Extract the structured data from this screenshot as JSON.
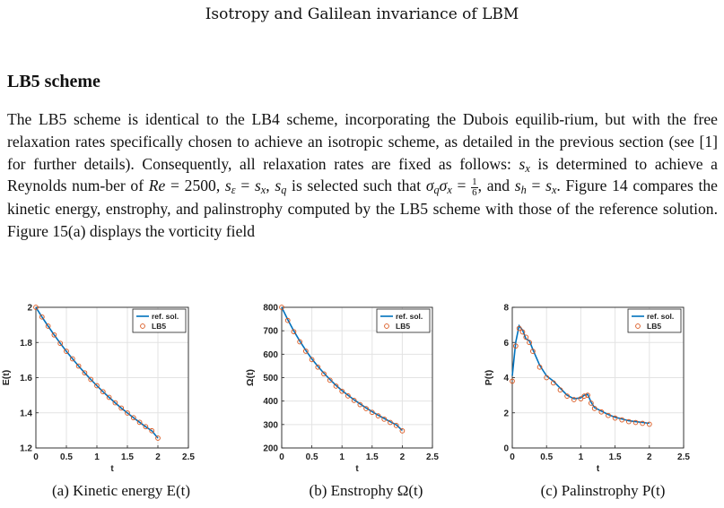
{
  "header": {
    "running_title": "Isotropy and Galilean invariance of LBM"
  },
  "section": {
    "title": "LB5 scheme"
  },
  "paragraph": {
    "s1": "The LB5 scheme is identical to the LB4 scheme, incorporating the Dubois equilib-rium, but with the free relaxation rates specifically chosen to achieve an isotropic scheme, as detailed in the previous section (see [1] for further details). Consequently, all relaxation rates are fixed as follows: ",
    "s2": " is determined to achieve a Reynolds num-ber of ",
    "s3": ", and ",
    "s4": ". Figure 14 compares the kinetic energy, enstrophy, and palinstrophy computed by the LB5 scheme with those of the reference solution. Figure 15(a) displays the vorticity field",
    "re_value": "2500",
    "frac_num": "1",
    "frac_den": "6"
  },
  "colors": {
    "ref_line": "#0072BD",
    "lb5_marker": "#D95319",
    "grid": "#e3e3e3"
  },
  "chart_data": [
    {
      "type": "line",
      "ylabel": "E(t)",
      "xlabel": "t",
      "xlim": [
        0,
        2.5
      ],
      "ylim": [
        1.2,
        2
      ],
      "xticks": [
        "0",
        "0.5",
        "1",
        "1.5",
        "2",
        "2.5"
      ],
      "yticks": [
        "1.2",
        "1.4",
        "1.6",
        "1.8",
        "2"
      ],
      "legend": "top-right",
      "legend_entries": [
        "ref. sol.",
        "LB5"
      ],
      "grid": true,
      "caption": "(a) Kinetic energy E(t)",
      "x": [
        0,
        0.1,
        0.2,
        0.3,
        0.4,
        0.5,
        0.6,
        0.7,
        0.8,
        0.9,
        1.0,
        1.1,
        1.2,
        1.3,
        1.4,
        1.5,
        1.6,
        1.7,
        1.8,
        1.9,
        2.0
      ],
      "series": [
        {
          "name": "ref. sol.",
          "style": "line",
          "values": [
            2.0,
            1.945,
            1.893,
            1.843,
            1.795,
            1.75,
            1.707,
            1.666,
            1.627,
            1.59,
            1.554,
            1.52,
            1.488,
            1.457,
            1.427,
            1.399,
            1.372,
            1.346,
            1.321,
            1.298,
            1.256
          ]
        },
        {
          "name": "LB5",
          "style": "markers",
          "values": [
            2.0,
            1.945,
            1.893,
            1.843,
            1.795,
            1.75,
            1.707,
            1.666,
            1.627,
            1.59,
            1.554,
            1.52,
            1.488,
            1.457,
            1.427,
            1.399,
            1.372,
            1.346,
            1.321,
            1.298,
            1.256
          ]
        }
      ]
    },
    {
      "type": "line",
      "ylabel": "Ω(t)",
      "xlabel": "t",
      "xlim": [
        0,
        2.5
      ],
      "ylim": [
        200,
        800
      ],
      "xticks": [
        "0",
        "0.5",
        "1",
        "1.5",
        "2",
        "2.5"
      ],
      "yticks": [
        "200",
        "300",
        "400",
        "500",
        "600",
        "700",
        "800"
      ],
      "legend": "top-right",
      "legend_entries": [
        "ref. sol.",
        "LB5"
      ],
      "grid": true,
      "caption": "(b) Enstrophy Ω(t)",
      "x": [
        0,
        0.1,
        0.2,
        0.3,
        0.4,
        0.5,
        0.6,
        0.7,
        0.8,
        0.9,
        1.0,
        1.1,
        1.2,
        1.3,
        1.4,
        1.5,
        1.6,
        1.7,
        1.8,
        1.9,
        2.0
      ],
      "series": [
        {
          "name": "ref. sol.",
          "style": "line",
          "values": [
            800,
            748,
            700,
            656,
            616,
            580,
            548,
            519,
            492,
            467,
            445,
            425,
            406,
            388,
            371,
            355,
            340,
            326,
            312,
            299,
            275
          ]
        },
        {
          "name": "LB5",
          "style": "markers",
          "values": [
            800,
            744,
            696,
            653,
            613,
            577,
            545,
            516,
            489,
            464,
            442,
            422,
            403,
            385,
            368,
            352,
            337,
            323,
            309,
            296,
            273
          ]
        }
      ]
    },
    {
      "type": "line",
      "ylabel": "P(t)",
      "xlabel": "t",
      "xlim": [
        0,
        2.5
      ],
      "ylim": [
        0,
        8
      ],
      "xticks": [
        "0",
        "0.5",
        "1",
        "1.5",
        "2",
        "2.5"
      ],
      "yticks": [
        "0",
        "2",
        "4",
        "6",
        "8"
      ],
      "legend": "top-right",
      "legend_entries": [
        "ref. sol.",
        "LB5"
      ],
      "grid": true,
      "caption": "(c) Palinstrophy P(t)",
      "x": [
        0,
        0.05,
        0.1,
        0.15,
        0.2,
        0.25,
        0.3,
        0.4,
        0.5,
        0.6,
        0.7,
        0.8,
        0.9,
        1.0,
        1.05,
        1.1,
        1.15,
        1.2,
        1.3,
        1.4,
        1.5,
        1.6,
        1.7,
        1.8,
        1.9,
        2.0
      ],
      "series": [
        {
          "name": "ref. sol.",
          "style": "line",
          "values": [
            4.1,
            6.0,
            6.95,
            6.7,
            6.2,
            6.1,
            5.6,
            4.7,
            4.1,
            3.8,
            3.4,
            3.0,
            2.8,
            2.85,
            3.0,
            3.05,
            2.6,
            2.3,
            2.1,
            1.9,
            1.75,
            1.65,
            1.55,
            1.5,
            1.45,
            1.4
          ]
        },
        {
          "name": "LB5",
          "style": "markers",
          "values": [
            3.8,
            5.8,
            6.8,
            6.6,
            6.3,
            6.0,
            5.5,
            4.6,
            4.0,
            3.7,
            3.3,
            2.95,
            2.75,
            2.8,
            2.95,
            3.0,
            2.55,
            2.25,
            2.05,
            1.85,
            1.7,
            1.6,
            1.5,
            1.45,
            1.4,
            1.35
          ]
        }
      ]
    }
  ]
}
